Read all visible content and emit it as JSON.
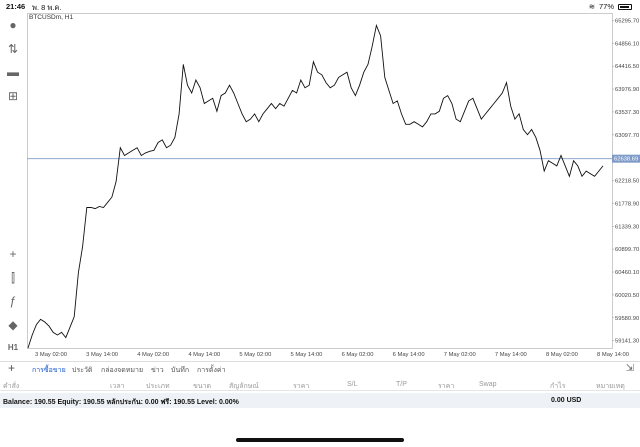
{
  "status": {
    "time": "21:46",
    "date": "พ. 8 พ.ค.",
    "battery": "77%"
  },
  "chart": {
    "symbol_label": "BTCUSDm, H1",
    "current_price": "62638.69",
    "price_ticks": [
      "65295.70",
      "64856.10",
      "64416.50",
      "63976.90",
      "63537.30",
      "63097.70",
      "62218.50",
      "61778.90",
      "61339.30",
      "60899.70",
      "60460.10",
      "60020.50",
      "59580.90",
      "59141.30"
    ],
    "time_ticks": [
      "3 May 02:00",
      "3 May 14:00",
      "4 May 02:00",
      "4 May 14:00",
      "5 May 02:00",
      "5 May 14:00",
      "6 May 02:00",
      "6 May 14:00",
      "7 May 02:00",
      "7 May 14:00",
      "8 May 02:00",
      "8 May 14:00"
    ],
    "line_color": "#111111",
    "price_line_color": "#7f9bc8"
  },
  "chart_data": {
    "type": "line",
    "title": "BTCUSDm, H1",
    "ylim": [
      59000,
      65400
    ],
    "x_range": [
      0,
      105
    ],
    "series": [
      {
        "values": [
          59000,
          59250,
          59450,
          59550,
          59500,
          59420,
          59300,
          59250,
          59300,
          59200,
          59400,
          59600,
          60450,
          60950,
          61700,
          61700,
          61680,
          61720,
          61700,
          61800,
          61900,
          62200,
          62850,
          62700,
          62750,
          62800,
          62850,
          62700,
          62750,
          62780,
          62800,
          62950,
          63000,
          62850,
          62900,
          63050,
          63500,
          64450,
          64050,
          63900,
          64150,
          64000,
          63700,
          63750,
          63800,
          63550,
          63850,
          63900,
          64050,
          63900,
          63700,
          63500,
          63350,
          63400,
          63500,
          63350,
          63500,
          63600,
          63700,
          63600,
          63700,
          63650,
          63800,
          63950,
          63900,
          64150,
          64000,
          64050,
          64500,
          64300,
          64250,
          64100,
          64000,
          64050,
          64200,
          64250,
          64300,
          64000,
          63850,
          64050,
          64300,
          64450,
          64800,
          65200,
          65000,
          64200,
          63950,
          63700,
          63750,
          63500,
          63300,
          63300,
          63350,
          63300,
          63250,
          63350,
          63500,
          63500,
          63550,
          63800,
          63850,
          63700,
          63400,
          63350,
          63550,
          63750,
          63800,
          63600,
          63400,
          63500,
          63600,
          63700,
          63800,
          63900,
          64100,
          63650,
          63400,
          63500,
          63200,
          63100,
          63200,
          63050,
          62800,
          62400,
          62600,
          62550,
          62500,
          62700,
          62500,
          62300,
          62600,
          62500,
          62300,
          62400,
          62350,
          62300,
          62400,
          62500
        ]
      }
    ]
  },
  "tabs": [
    "การซื้อขาย",
    "ประวัติ",
    "กล่องจดหมาย",
    "ข่าว",
    "บันทึก",
    "การตั้งค่า"
  ],
  "columns": [
    "คำสั่ง",
    "เวลา",
    "ประเภท",
    "ขนาด",
    "สัญลักษณ์",
    "ราคา",
    "S/L",
    "T/P",
    "ราคา",
    "Swap",
    "กำไร",
    "หมายเหตุ"
  ],
  "balance": {
    "text": "Balance: 190.55 Equity: 190.55 หลักประกัน: 0.00 ฟรี: 190.55 Level: 0.00%",
    "profit": "0.00  USD"
  }
}
